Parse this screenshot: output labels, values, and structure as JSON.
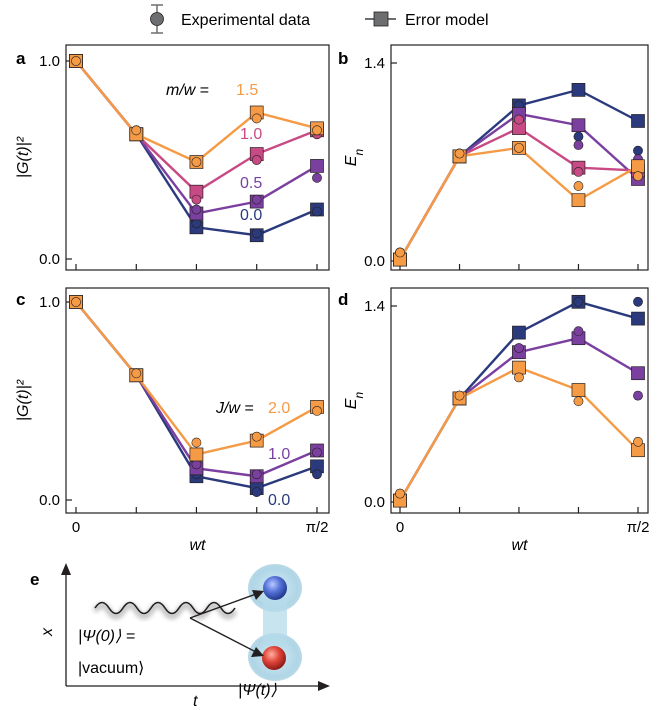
{
  "legend": {
    "experimental_label": "Experimental data",
    "model_label": "Error model"
  },
  "x_tick_labels": [
    "0",
    "π/2"
  ],
  "x_axis_label": "wt",
  "colors": {
    "dark_blue": "#2b3a7d",
    "purple": "#7b3fa0",
    "magenta": "#c84a85",
    "orange": "#f59a45",
    "axis": "#231f20"
  },
  "chart_data": [
    {
      "panel": "a",
      "type": "line",
      "ylabel": "|G(t)|²",
      "xlabel": "",
      "xlim": [
        0,
        1.571
      ],
      "ylim": [
        0,
        1
      ],
      "yticks": [
        "0.0",
        "1.0"
      ],
      "x": [
        0,
        0.393,
        0.785,
        1.178,
        1.571
      ],
      "annotation_prefix": "m/w = ",
      "series": [
        {
          "name": "0.0",
          "color": "#2b3a7d",
          "model": [
            1.0,
            0.63,
            0.16,
            0.12,
            0.25
          ],
          "experiment": [
            1.0,
            0.65,
            0.18,
            0.13,
            0.24
          ]
        },
        {
          "name": "0.5",
          "color": "#7b3fa0",
          "model": [
            1.0,
            0.63,
            0.23,
            0.29,
            0.47
          ],
          "experiment": [
            1.0,
            0.65,
            0.25,
            0.3,
            0.41
          ]
        },
        {
          "name": "1.0",
          "color": "#c84a85",
          "model": [
            1.0,
            0.63,
            0.34,
            0.53,
            0.65
          ],
          "experiment": [
            1.0,
            0.65,
            0.3,
            0.5,
            0.63
          ]
        },
        {
          "name": "1.5",
          "color": "#f59a45",
          "model": [
            1.0,
            0.63,
            0.49,
            0.74,
            0.66
          ],
          "experiment": [
            1.0,
            0.65,
            0.49,
            0.71,
            0.65
          ]
        }
      ]
    },
    {
      "panel": "b",
      "type": "line",
      "ylabel": "E_n",
      "xlabel": "",
      "xlim": [
        0,
        1.571
      ],
      "ylim": [
        0,
        1.4
      ],
      "yticks": [
        "0.0",
        "1.4"
      ],
      "x": [
        0,
        0.393,
        0.785,
        1.178,
        1.571
      ],
      "series": [
        {
          "name": "0.0",
          "color": "#2b3a7d",
          "model": [
            0.01,
            0.74,
            1.1,
            1.21,
            0.99
          ],
          "experiment": [
            0.06,
            0.76,
            1.1,
            0.88,
            0.78
          ]
        },
        {
          "name": "0.5",
          "color": "#7b3fa0",
          "model": [
            0.01,
            0.74,
            1.04,
            0.96,
            0.58
          ],
          "experiment": [
            0.06,
            0.76,
            0.97,
            0.82,
            0.72
          ]
        },
        {
          "name": "1.0",
          "color": "#c84a85",
          "model": [
            0.01,
            0.74,
            0.94,
            0.66,
            0.64
          ],
          "experiment": [
            0.06,
            0.76,
            1.0,
            0.63,
            0.64
          ]
        },
        {
          "name": "1.5",
          "color": "#f59a45",
          "model": [
            0.01,
            0.74,
            0.8,
            0.43,
            0.67
          ],
          "experiment": [
            0.06,
            0.76,
            0.8,
            0.53,
            0.6
          ]
        }
      ]
    },
    {
      "panel": "c",
      "type": "line",
      "ylabel": "|G(t)|²",
      "xlabel": "wt",
      "xlim": [
        0,
        1.571
      ],
      "ylim": [
        0,
        1
      ],
      "yticks": [
        "0.0",
        "1.0"
      ],
      "x": [
        0,
        0.393,
        0.785,
        1.178,
        1.571
      ],
      "annotation_prefix": "J/w = ",
      "series": [
        {
          "name": "0.0",
          "color": "#2b3a7d",
          "model": [
            1.0,
            0.63,
            0.12,
            0.06,
            0.17
          ],
          "experiment": [
            1.0,
            0.64,
            0.13,
            0.04,
            0.13
          ]
        },
        {
          "name": "1.0",
          "color": "#7b3fa0",
          "model": [
            1.0,
            0.63,
            0.16,
            0.12,
            0.25
          ],
          "experiment": [
            1.0,
            0.64,
            0.18,
            0.13,
            0.24
          ]
        },
        {
          "name": "2.0",
          "color": "#f59a45",
          "model": [
            1.0,
            0.63,
            0.23,
            0.3,
            0.47
          ],
          "experiment": [
            1.0,
            0.64,
            0.29,
            0.32,
            0.45
          ]
        }
      ]
    },
    {
      "panel": "d",
      "type": "line",
      "ylabel": "E_n",
      "xlabel": "wt",
      "xlim": [
        0,
        1.571
      ],
      "ylim": [
        0,
        1.4
      ],
      "yticks": [
        "0.0",
        "1.4"
      ],
      "x": [
        0,
        0.393,
        0.785,
        1.178,
        1.571
      ],
      "series": [
        {
          "name": "0.0",
          "color": "#2b3a7d",
          "model": [
            0.01,
            0.74,
            1.21,
            1.43,
            1.31
          ],
          "experiment": [
            0.06,
            0.76,
            1.09,
            1.43,
            1.43
          ]
        },
        {
          "name": "1.0",
          "color": "#7b3fa0",
          "model": [
            0.01,
            0.74,
            1.07,
            1.17,
            0.92
          ],
          "experiment": [
            0.06,
            0.76,
            1.1,
            1.22,
            0.76
          ]
        },
        {
          "name": "2.0",
          "color": "#f59a45",
          "model": [
            0.01,
            0.74,
            0.96,
            0.8,
            0.37
          ],
          "experiment": [
            0.06,
            0.76,
            0.89,
            0.72,
            0.43
          ]
        }
      ]
    }
  ],
  "diagram": {
    "panel_letter": "e",
    "x_axis": "t",
    "y_axis": "x",
    "initial_state_line1": "|Ψ(0)⟩ =",
    "initial_state_line2": "|vacuum⟩",
    "final_state": "|Ψ(t)⟩"
  }
}
